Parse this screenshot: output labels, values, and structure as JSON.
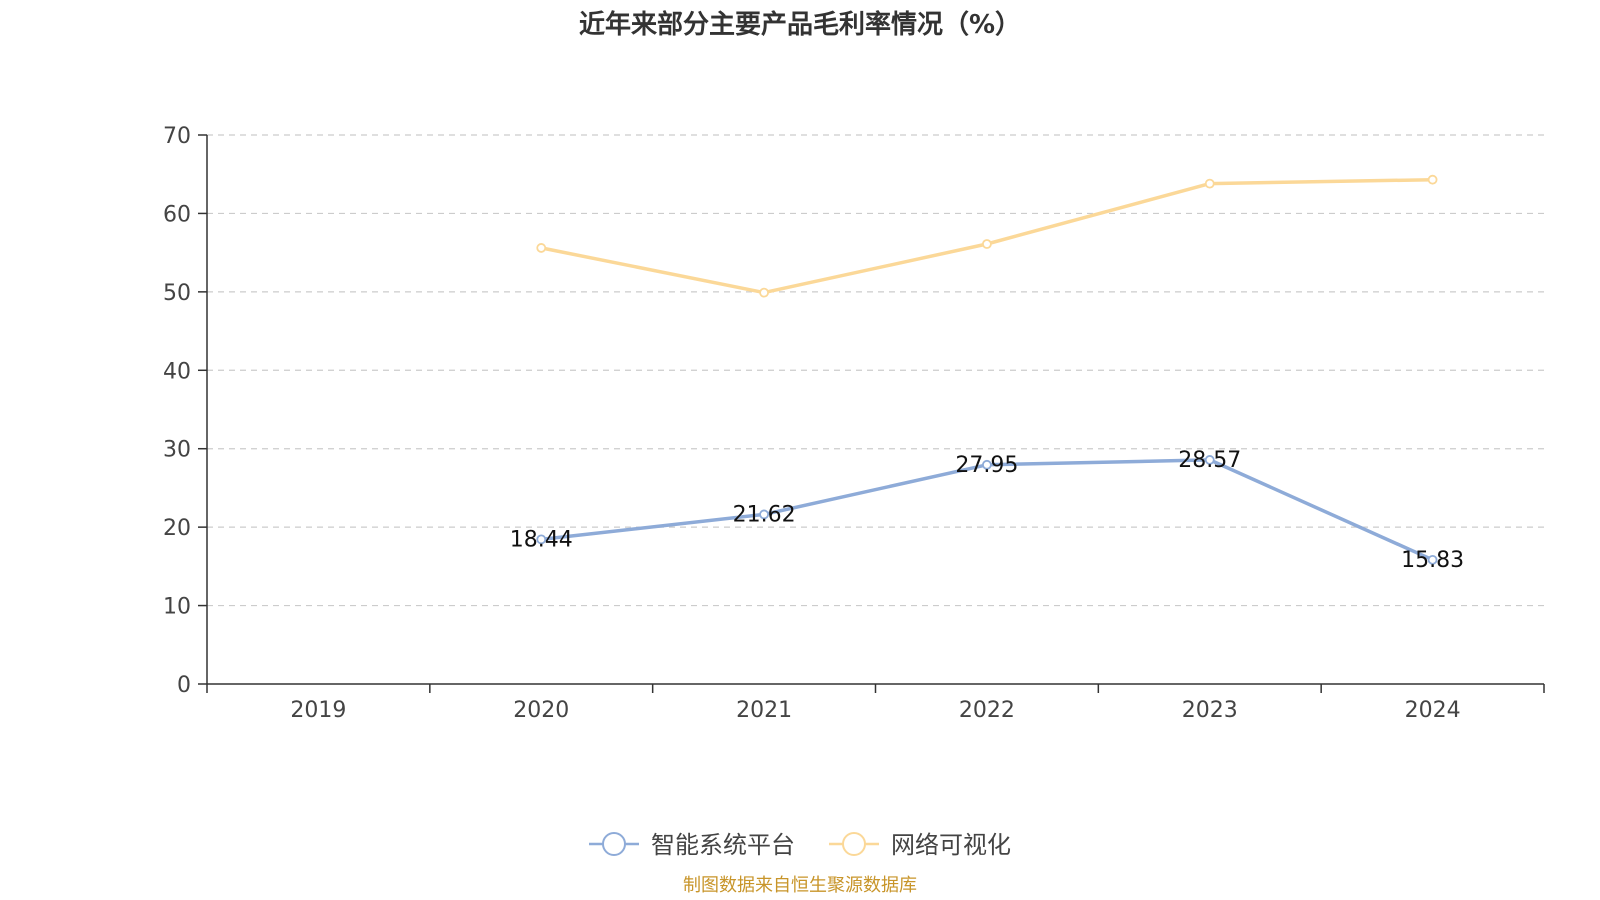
{
  "chart_data": {
    "type": "line",
    "title": "近年来部分主要产品毛利率情况（%）",
    "categories": [
      "2019",
      "2020",
      "2021",
      "2022",
      "2023",
      "2024"
    ],
    "ylim": [
      0,
      70
    ],
    "yticks": [
      0,
      10,
      20,
      30,
      40,
      50,
      60,
      70
    ],
    "grid": true,
    "legend_position": "bottom-center",
    "series": [
      {
        "name": "智能系统平台",
        "color": "#8eabd8",
        "values": [
          null,
          18.44,
          21.62,
          27.95,
          28.57,
          15.83
        ],
        "show_labels": true
      },
      {
        "name": "网络可视化",
        "color": "#fbd898",
        "values": [
          null,
          55.6,
          49.9,
          56.1,
          63.8,
          64.3
        ],
        "show_labels": false
      }
    ]
  },
  "source": {
    "text": "制图数据来自恒生聚源数据库",
    "color": "#c8952a"
  }
}
